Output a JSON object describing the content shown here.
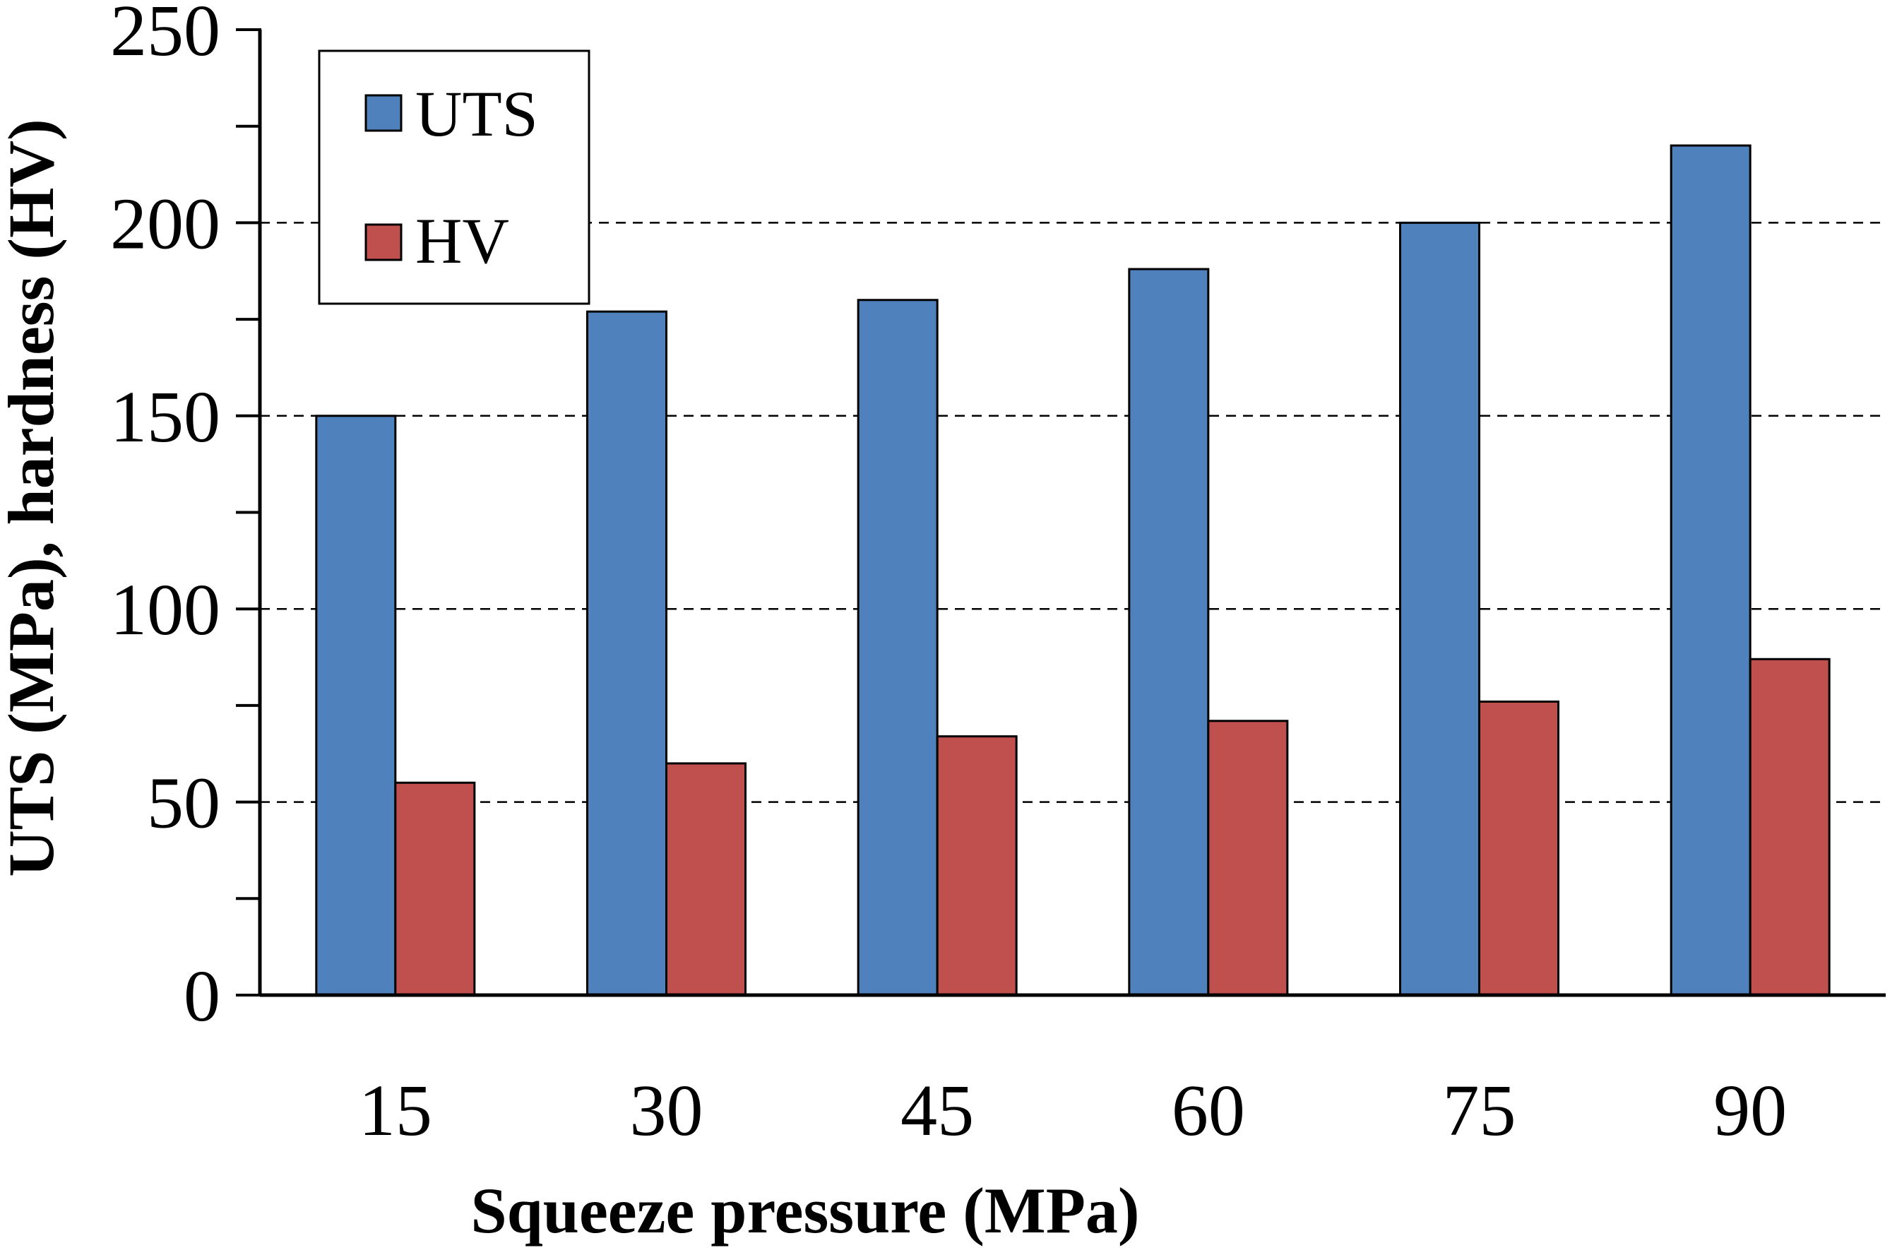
{
  "chart_data": {
    "type": "bar",
    "title": "",
    "xlabel": "Squeeze pressure (MPa)",
    "ylabel": "UTS (MPa), hardness (HV)",
    "categories": [
      "15",
      "30",
      "45",
      "60",
      "75",
      "90"
    ],
    "series": [
      {
        "name": "UTS",
        "color": "#4F81BD",
        "values": [
          150,
          177,
          180,
          188,
          200,
          220
        ]
      },
      {
        "name": "HV",
        "color": "#C0504D",
        "values": [
          55,
          60,
          67,
          71,
          76,
          87
        ]
      }
    ],
    "ylim": [
      0,
      250
    ],
    "yticks": [
      "0",
      "50",
      "100",
      "150",
      "200",
      "250"
    ],
    "grid": "horizontal dashed at major ticks",
    "legend_position": "top-left"
  }
}
